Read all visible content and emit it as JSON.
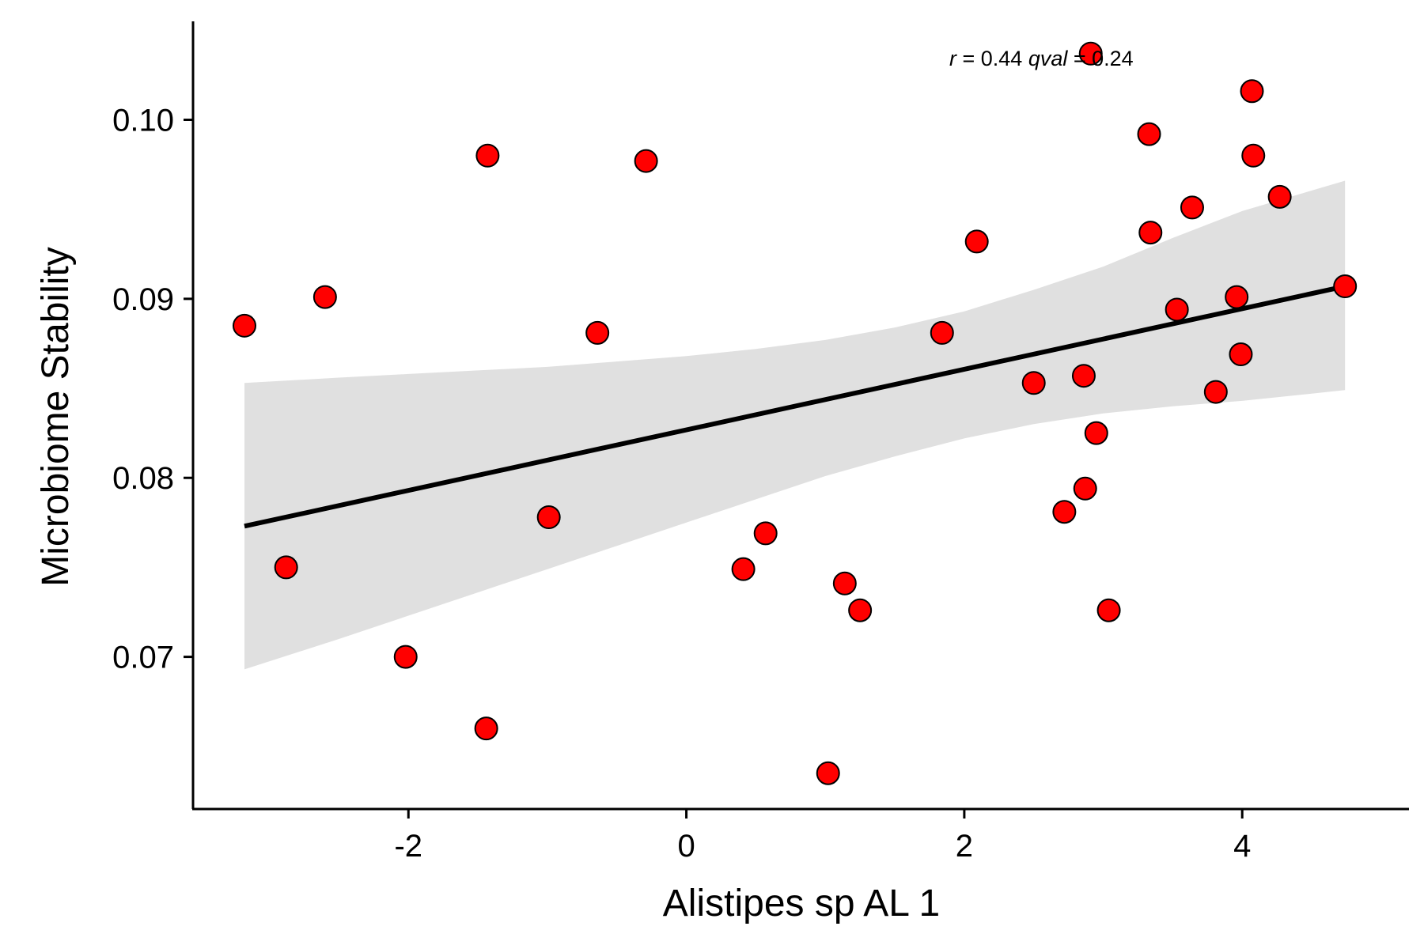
{
  "chart_data": {
    "type": "scatter",
    "xlabel": "Alistipes sp AL 1",
    "ylabel": "Microbiome Stability",
    "xlim": [
      -3.55,
      5.2
    ],
    "ylim": [
      0.0615,
      0.1055
    ],
    "x_ticks": [
      {
        "value": -2,
        "label": "-2"
      },
      {
        "value": 0,
        "label": "0"
      },
      {
        "value": 2,
        "label": "2"
      },
      {
        "value": 4,
        "label": "4"
      }
    ],
    "y_ticks": [
      {
        "value": 0.07,
        "label": "0.07"
      },
      {
        "value": 0.08,
        "label": "0.08"
      },
      {
        "value": 0.09,
        "label": "0.09"
      },
      {
        "value": 0.1,
        "label": "0.10"
      }
    ],
    "grid": false,
    "annotation": {
      "r_symbol": "r",
      "r_text": " = 0.44 ",
      "q_symbol": "qval",
      "q_text": " = 0.24"
    },
    "points": [
      {
        "x": -3.18,
        "y": 0.0885
      },
      {
        "x": -2.88,
        "y": 0.075
      },
      {
        "x": -2.6,
        "y": 0.0901
      },
      {
        "x": -2.02,
        "y": 0.07
      },
      {
        "x": -1.43,
        "y": 0.098
      },
      {
        "x": -1.44,
        "y": 0.066
      },
      {
        "x": -0.99,
        "y": 0.0778
      },
      {
        "x": -0.64,
        "y": 0.0881
      },
      {
        "x": -0.29,
        "y": 0.0977
      },
      {
        "x": 0.41,
        "y": 0.0749
      },
      {
        "x": 0.57,
        "y": 0.0769
      },
      {
        "x": 1.02,
        "y": 0.0635
      },
      {
        "x": 1.14,
        "y": 0.0741
      },
      {
        "x": 1.25,
        "y": 0.0726
      },
      {
        "x": 1.84,
        "y": 0.0881
      },
      {
        "x": 2.09,
        "y": 0.0932
      },
      {
        "x": 2.5,
        "y": 0.0853
      },
      {
        "x": 2.72,
        "y": 0.0781
      },
      {
        "x": 2.86,
        "y": 0.0857
      },
      {
        "x": 2.87,
        "y": 0.0794
      },
      {
        "x": 2.91,
        "y": 0.1037
      },
      {
        "x": 2.95,
        "y": 0.0825
      },
      {
        "x": 3.04,
        "y": 0.0726
      },
      {
        "x": 3.33,
        "y": 0.0992
      },
      {
        "x": 3.34,
        "y": 0.0937
      },
      {
        "x": 3.53,
        "y": 0.0894
      },
      {
        "x": 3.64,
        "y": 0.0951
      },
      {
        "x": 3.81,
        "y": 0.0848
      },
      {
        "x": 3.96,
        "y": 0.0901
      },
      {
        "x": 3.99,
        "y": 0.0869
      },
      {
        "x": 4.07,
        "y": 0.1016
      },
      {
        "x": 4.08,
        "y": 0.098
      },
      {
        "x": 4.27,
        "y": 0.0957
      },
      {
        "x": 4.74,
        "y": 0.0907
      }
    ],
    "fit_line": {
      "type": "linear",
      "x": [
        -3.18,
        4.74
      ],
      "y": [
        0.0773,
        0.0907
      ]
    },
    "confidence_band": {
      "x": [
        -3.18,
        -2.5,
        -2.0,
        -1.5,
        -1.0,
        -0.5,
        0.0,
        0.5,
        1.0,
        1.5,
        2.0,
        2.5,
        3.0,
        3.5,
        4.0,
        4.74
      ],
      "lower": [
        0.0693,
        0.071,
        0.0723,
        0.0736,
        0.0749,
        0.0762,
        0.0775,
        0.0788,
        0.0801,
        0.0812,
        0.0822,
        0.083,
        0.0836,
        0.084,
        0.0843,
        0.0849
      ],
      "upper": [
        0.0853,
        0.0856,
        0.0858,
        0.086,
        0.0862,
        0.0865,
        0.0868,
        0.0872,
        0.0877,
        0.0884,
        0.0893,
        0.0905,
        0.0918,
        0.0934,
        0.0949,
        0.0966
      ]
    },
    "colors": {
      "point_fill": "#ff0000",
      "point_stroke": "#000000",
      "fit_line": "#000000",
      "band": "#e0e0e0",
      "axis": "#000000"
    }
  }
}
